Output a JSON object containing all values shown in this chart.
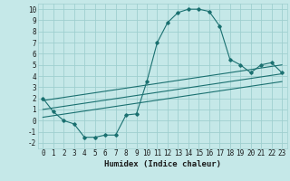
{
  "xlabel": "Humidex (Indice chaleur)",
  "background_color": "#c5e8e8",
  "grid_color": "#9fcfcf",
  "line_color": "#1a7070",
  "xlim": [
    -0.5,
    23.5
  ],
  "ylim": [
    -2.5,
    10.5
  ],
  "xticks": [
    0,
    1,
    2,
    3,
    4,
    5,
    6,
    7,
    8,
    9,
    10,
    11,
    12,
    13,
    14,
    15,
    16,
    17,
    18,
    19,
    20,
    21,
    22,
    23
  ],
  "yticks": [
    -2,
    -1,
    0,
    1,
    2,
    3,
    4,
    5,
    6,
    7,
    8,
    9,
    10
  ],
  "series1_x": [
    0,
    1,
    2,
    3,
    4,
    5,
    6,
    7,
    8,
    9,
    10,
    11,
    12,
    13,
    14,
    15,
    16,
    17,
    18,
    19,
    20,
    21,
    22,
    23
  ],
  "series1_y": [
    2.0,
    0.8,
    0.0,
    -0.3,
    -1.5,
    -1.5,
    -1.3,
    -1.3,
    0.5,
    0.6,
    3.5,
    7.0,
    8.8,
    9.7,
    10.0,
    10.0,
    9.8,
    8.5,
    5.5,
    5.0,
    4.3,
    5.0,
    5.2,
    4.3
  ],
  "series2_x": [
    0,
    23
  ],
  "series2_y": [
    1.8,
    5.0
  ],
  "series3_x": [
    0,
    23
  ],
  "series3_y": [
    1.0,
    4.2
  ],
  "series4_x": [
    0,
    23
  ],
  "series4_y": [
    0.3,
    3.5
  ]
}
